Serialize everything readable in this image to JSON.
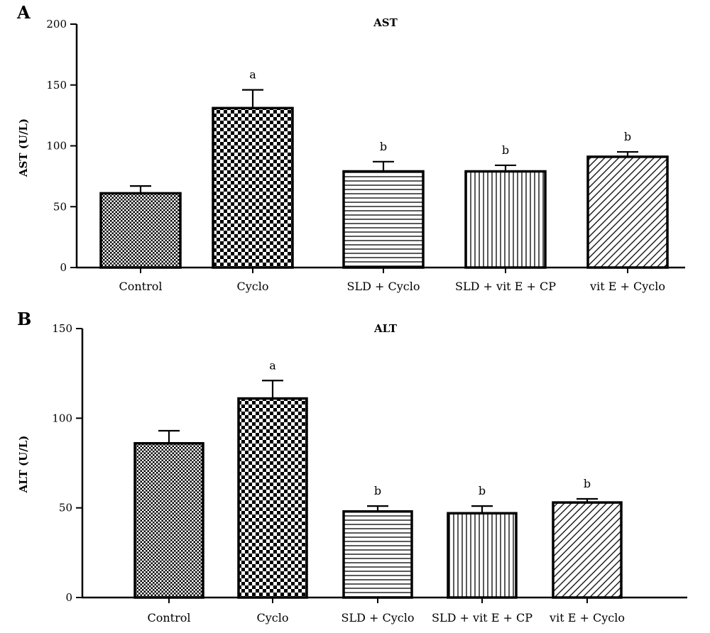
{
  "chart_data": [
    {
      "type": "bar",
      "panel": "A",
      "title": "AST",
      "xlabel": "",
      "ylabel": "AST (U/L)",
      "ylim": [
        0,
        200
      ],
      "yticks": [
        0,
        50,
        100,
        150,
        200
      ],
      "categories": [
        "Control",
        "Cyclo",
        "SLD + Cyclo",
        "SLD + vit E + CP",
        "vit E + Cyclo"
      ],
      "values": [
        61,
        131,
        79,
        79,
        91
      ],
      "errors": [
        6,
        15,
        8,
        5,
        4
      ],
      "significance": [
        "",
        "a",
        "b",
        "b",
        "b"
      ],
      "patterns": [
        "crosshatch-fine",
        "checker",
        "horizontal",
        "vertical",
        "diagonal"
      ],
      "grid": false,
      "legend": "none"
    },
    {
      "type": "bar",
      "panel": "B",
      "title": "ALT",
      "xlabel": "",
      "ylabel": "ALT (U/L)",
      "ylim": [
        0,
        150
      ],
      "yticks": [
        0,
        50,
        100,
        150
      ],
      "categories": [
        "Control",
        "Cyclo",
        "SLD + Cyclo",
        "SLD + vit E + CP",
        "vit E + Cyclo"
      ],
      "values": [
        86,
        111,
        48,
        47,
        53
      ],
      "errors": [
        7,
        10,
        3,
        4,
        2
      ],
      "significance": [
        "",
        "a",
        "b",
        "b",
        "b"
      ],
      "patterns": [
        "crosshatch-fine",
        "checker",
        "horizontal",
        "vertical",
        "diagonal"
      ],
      "grid": false,
      "legend": "none"
    }
  ]
}
